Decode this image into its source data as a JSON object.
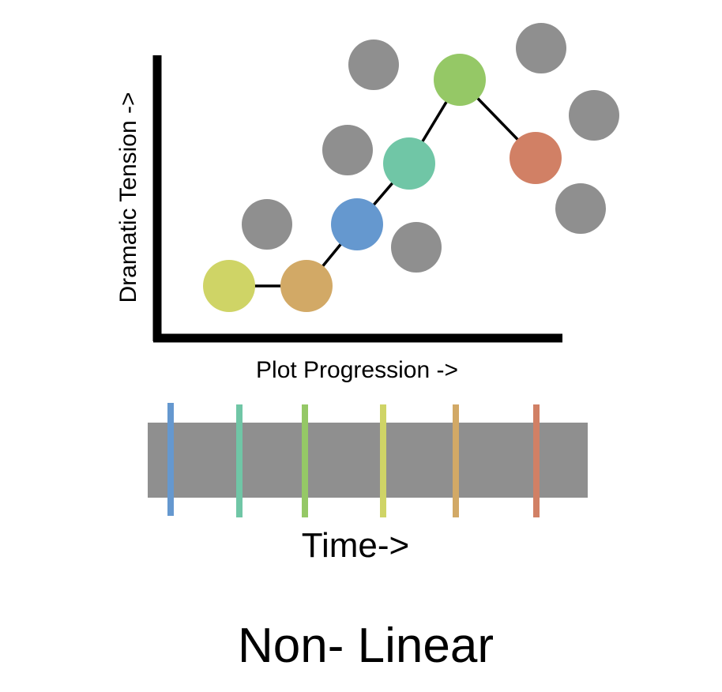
{
  "chart": {
    "y_axis_label": "Dramatic Tension ->",
    "x_axis_label": "Plot Progression ->",
    "plotted_colors": [
      "#cfd466",
      "#d2a966",
      "#6598cf",
      "#70c6a6",
      "#95c866",
      "#d18065"
    ],
    "background_dot_color": "#8f8f8f",
    "line_color": "#000000"
  },
  "timeline": {
    "label": "Time->",
    "bar_color": "#8f8f8f",
    "marker_colors": [
      "#6598cf",
      "#70c6a6",
      "#95c866",
      "#cfd466",
      "#d2a966",
      "#d18065"
    ]
  },
  "caption": "Non- Linear"
}
